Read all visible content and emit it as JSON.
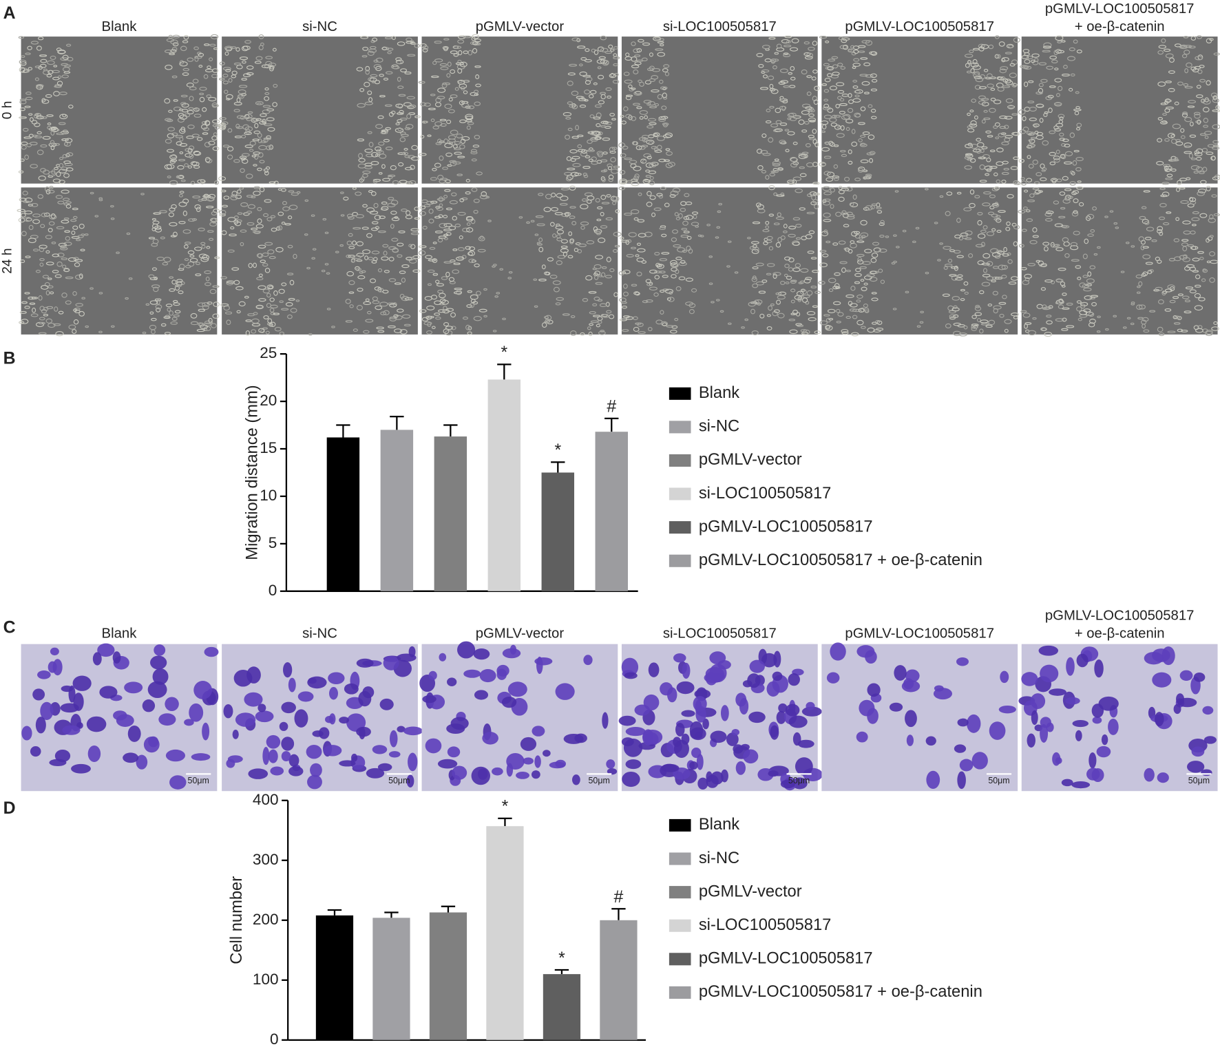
{
  "panel_labels": [
    "A",
    "B",
    "C",
    "D"
  ],
  "image_columns": [
    [
      "Blank"
    ],
    [
      "si-NC"
    ],
    [
      "pGMLV-vector"
    ],
    [
      "si-LOC100505817"
    ],
    [
      "pGMLV-LOC100505817"
    ],
    [
      "pGMLV-LOC100505817",
      "+ oe-β-catenin"
    ]
  ],
  "wound_rows": [
    "0 h",
    "24 h"
  ],
  "scale_bar": "50μm",
  "chart_data": [
    {
      "type": "bar",
      "ylabel": "Migration distance (mm)",
      "categories": [
        "Blank",
        "si-NC",
        "pGMLV-vector",
        "si-LOC100505817",
        "pGMLV-LOC100505817",
        "pGMLV-LOC100505817 + oe-β-catenin"
      ],
      "values": [
        16.2,
        17.0,
        16.3,
        22.3,
        12.5,
        16.8
      ],
      "errors": [
        1.3,
        1.4,
        1.2,
        1.6,
        1.1,
        1.4
      ],
      "markers": [
        null,
        null,
        null,
        "*",
        "*",
        "#"
      ],
      "colors": [
        "#000000",
        "#a0a0a4",
        "#808080",
        "#d4d4d4",
        "#5f5f5f",
        "#9c9c9f"
      ],
      "ylim": [
        0,
        25
      ],
      "yticks": [
        0,
        5,
        10,
        15,
        20,
        25
      ],
      "grid": false
    },
    {
      "type": "bar",
      "ylabel": "Cell number",
      "categories": [
        "Blank",
        "si-NC",
        "pGMLV-vector",
        "si-LOC100505817",
        "pGMLV-LOC100505817",
        "pGMLV-LOC100505817 + oe-β-catenin"
      ],
      "values": [
        208,
        204,
        213,
        357,
        110,
        200
      ],
      "errors": [
        9,
        9,
        10,
        13,
        7,
        19
      ],
      "markers": [
        null,
        null,
        null,
        "*",
        "*",
        "#"
      ],
      "colors": [
        "#000000",
        "#a0a0a4",
        "#808080",
        "#d4d4d4",
        "#5f5f5f",
        "#9c9c9f"
      ],
      "ylim": [
        0,
        400
      ],
      "yticks": [
        0,
        100,
        200,
        300,
        400
      ],
      "grid": false
    }
  ]
}
